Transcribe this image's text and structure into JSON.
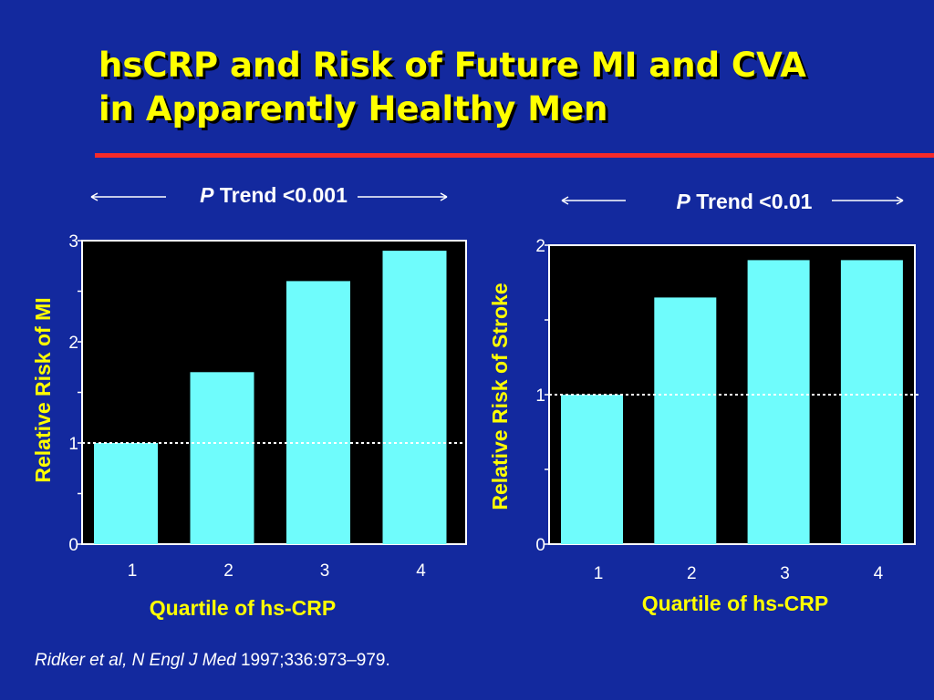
{
  "slide": {
    "title_line1": "hsCRP and Risk of Future MI and CVA",
    "title_line2": "in Apparently Healthy Men",
    "citation_italic": "Ridker et al, N Engl J Med",
    "citation_rest": " 1997;336:973–979."
  },
  "colors": {
    "background": "#13299e",
    "title": "#ffff00",
    "rule": "#f52a2a",
    "bar": "#6ffcfc",
    "plot_area": "#000000",
    "axis_label": "#ffff00",
    "tick_text": "#ffffff"
  },
  "chart_data": [
    {
      "type": "bar",
      "trend_italic": "P",
      "trend_rest": " Trend <0.001",
      "categories": [
        "1",
        "2",
        "3",
        "4"
      ],
      "values": [
        1.0,
        1.7,
        2.6,
        2.9
      ],
      "xlabel": "Quartile of hs-CRP",
      "ylabel": "Relative Risk of MI",
      "ylim": [
        0,
        3
      ],
      "yticks": [
        "0",
        "1",
        "2",
        "3"
      ],
      "reference_line": 1,
      "grid": false
    },
    {
      "type": "bar",
      "trend_italic": "P",
      "trend_rest": " Trend <0.01",
      "categories": [
        "1",
        "2",
        "3",
        "4"
      ],
      "values": [
        1.0,
        1.65,
        1.9,
        1.9
      ],
      "xlabel": "Quartile of hs-CRP",
      "ylabel": "Relative Risk of Stroke",
      "ylim": [
        0,
        2
      ],
      "yticks": [
        "0",
        "1",
        "2"
      ],
      "reference_line": 1,
      "grid": false
    }
  ]
}
